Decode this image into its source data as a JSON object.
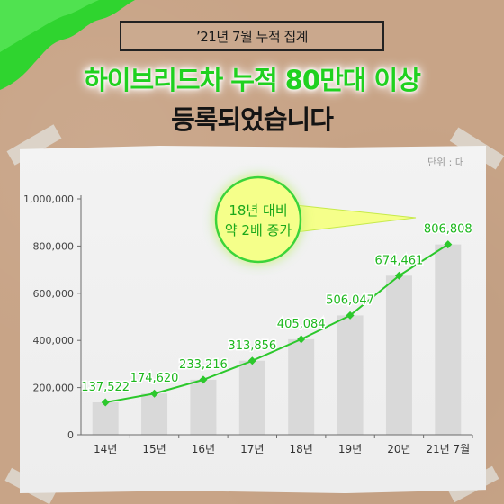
{
  "header": {
    "tag": "’21년 7월 누적 집계",
    "title_line1": "하이브리드차 누적 80만대 이상",
    "title_line2": "등록되었습니다"
  },
  "chart_data": {
    "type": "bar",
    "unit": "단위 : 대",
    "categories": [
      "14년",
      "15년",
      "16년",
      "17년",
      "18년",
      "19년",
      "20년",
      "21년 7월"
    ],
    "values": [
      137522,
      174620,
      233216,
      313856,
      405084,
      506047,
      674461,
      806808
    ],
    "value_labels": [
      "137,522",
      "174,620",
      "233,216",
      "313,856",
      "405,084",
      "506,047",
      "674,461",
      "806,808"
    ],
    "y_ticks": [
      0,
      200000,
      400000,
      600000,
      800000,
      1000000
    ],
    "y_tick_labels": [
      "0",
      "200,000",
      "400,000",
      "600,000",
      "800,000",
      "1,000,000"
    ],
    "ylim": [
      0,
      1000000
    ],
    "line_overlay": true,
    "callout": {
      "line1": "18년 대비",
      "line2": "약 2배 증가"
    }
  },
  "colors": {
    "accent": "#1fd11f",
    "line": "#2cc82c",
    "bar": "#d9d9d9"
  }
}
